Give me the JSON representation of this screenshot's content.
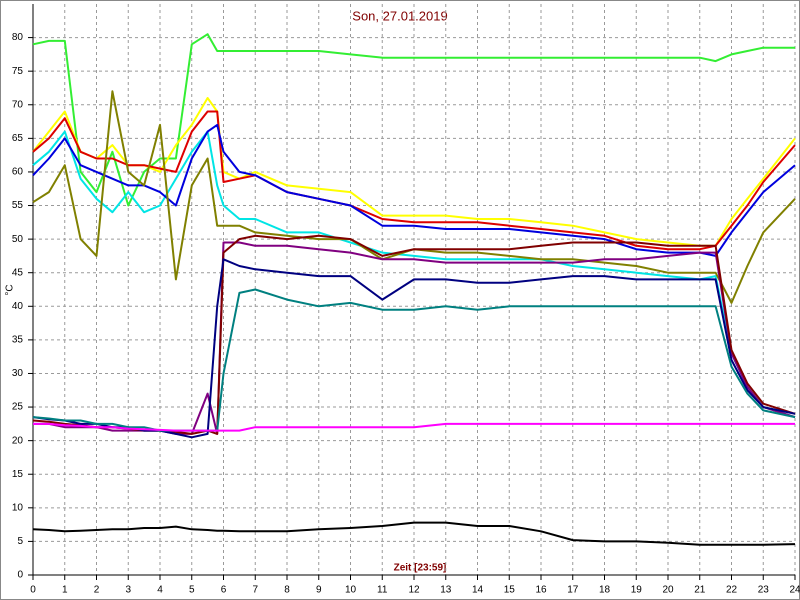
{
  "chart_data": {
    "type": "line",
    "title": "Son, 27.01.2019",
    "x_label": "Zeit [23:59]",
    "y_label": "°C",
    "x": [
      0,
      0.5,
      1,
      1.5,
      2,
      2.5,
      3,
      3.5,
      4,
      4.5,
      5,
      5.5,
      5.8,
      6,
      6.5,
      7,
      8,
      9,
      10,
      11,
      12,
      13,
      14,
      15,
      16,
      17,
      18,
      19,
      20,
      21,
      21.5,
      22,
      22.5,
      23,
      24
    ],
    "xlim": [
      0,
      24
    ],
    "xticks": [
      0,
      1,
      2,
      3,
      4,
      5,
      6,
      7,
      8,
      9,
      10,
      11,
      12,
      13,
      14,
      15,
      16,
      17,
      18,
      19,
      20,
      21,
      22,
      23,
      24
    ],
    "ylim": [
      0,
      85
    ],
    "yticks": [
      0,
      5,
      10,
      15,
      20,
      25,
      30,
      35,
      40,
      45,
      50,
      55,
      60,
      65,
      70,
      75,
      80
    ],
    "grid": true,
    "series": [
      {
        "color": "#33ee33",
        "values": [
          79,
          79.5,
          79.5,
          60,
          57,
          63,
          55,
          60,
          62,
          62,
          79,
          80.5,
          78,
          78,
          78,
          78,
          78,
          78,
          77.5,
          77,
          77,
          77,
          77,
          77,
          77,
          77,
          77,
          77,
          77,
          77,
          76.5,
          77.5,
          78,
          78.5,
          78.5
        ]
      },
      {
        "color": "#ffff00",
        "values": [
          63,
          66,
          69,
          63,
          62,
          64,
          61,
          61,
          60,
          64,
          67,
          71,
          69,
          60,
          59,
          60,
          58,
          57.5,
          57,
          53.5,
          53.5,
          53.5,
          53,
          53,
          52.5,
          52,
          51,
          50,
          49.5,
          49,
          49,
          53,
          56,
          59,
          65
        ]
      },
      {
        "color": "#dd0000",
        "values": [
          63,
          65,
          68,
          63,
          62,
          62,
          61,
          61,
          60.5,
          60,
          66,
          69,
          69,
          58.5,
          59,
          59.5,
          57,
          56,
          55,
          53,
          52.5,
          52.5,
          52.5,
          52,
          51.5,
          51,
          50.5,
          49,
          48.5,
          48.5,
          49,
          52,
          55,
          58.5,
          64
        ]
      },
      {
        "color": "#00e5e5",
        "values": [
          61,
          63,
          66,
          59,
          56,
          54,
          57,
          54,
          55,
          59,
          63,
          66,
          58,
          55,
          53,
          53,
          51,
          51,
          49.5,
          48,
          47.5,
          47,
          47,
          47,
          47,
          46,
          45.5,
          45,
          44.5,
          44,
          44.5,
          33,
          28,
          25,
          23.5
        ]
      },
      {
        "color": "#0000dd",
        "values": [
          59.5,
          62,
          65,
          61,
          60,
          59,
          58,
          58,
          57,
          55,
          62,
          66,
          67,
          63,
          60,
          59.5,
          57,
          56,
          55,
          52,
          52,
          51.5,
          51.5,
          51.5,
          51,
          50.5,
          50,
          48.5,
          48,
          48,
          47.5,
          51,
          54,
          57,
          61
        ]
      },
      {
        "color": "#808000",
        "values": [
          55.5,
          57,
          61,
          50,
          47.5,
          72,
          60,
          58,
          67,
          44,
          58,
          62,
          52,
          52,
          52,
          51,
          50.5,
          50,
          50,
          47,
          48.5,
          48,
          48,
          47.5,
          47,
          47,
          46.5,
          46,
          45,
          45,
          45,
          40.5,
          46,
          51,
          56
        ]
      },
      {
        "color": "#800080",
        "values": [
          22.5,
          22.5,
          22,
          22,
          22,
          21.5,
          21.5,
          21.5,
          21.5,
          21,
          21,
          27,
          21,
          49.5,
          49.5,
          49,
          49,
          48.5,
          48,
          47,
          47,
          46.5,
          46.5,
          46.5,
          46.5,
          46.5,
          47,
          47,
          47.5,
          48,
          48,
          33,
          28,
          25,
          23.5
        ]
      },
      {
        "color": "#800000",
        "values": [
          23,
          22.8,
          22.5,
          22.3,
          22,
          22,
          21.8,
          21.5,
          21.5,
          21.3,
          21,
          21.5,
          21,
          48,
          50,
          50.5,
          50,
          50.5,
          50,
          47.5,
          48.5,
          48.5,
          48.5,
          48.5,
          49,
          49.5,
          49.5,
          49.5,
          49,
          49,
          49,
          33.5,
          28.5,
          25.5,
          24
        ]
      },
      {
        "color": "#000080",
        "values": [
          23.5,
          23.2,
          23,
          22.5,
          22.5,
          22,
          22,
          21.5,
          21.5,
          21,
          20.5,
          21,
          40,
          47,
          46,
          45.5,
          45,
          44.5,
          44.5,
          41,
          44,
          44,
          43.5,
          43.5,
          44,
          44.5,
          44.5,
          44,
          44,
          44,
          44,
          32,
          27.5,
          25,
          24
        ]
      },
      {
        "color": "#008080",
        "values": [
          23.5,
          23.3,
          23,
          23,
          22.5,
          22.5,
          22,
          22,
          21.5,
          21.5,
          21.5,
          21.5,
          21.5,
          30,
          42,
          42.5,
          41,
          40,
          40.5,
          39.5,
          39.5,
          40,
          39.5,
          40,
          40,
          40,
          40,
          40,
          40,
          40,
          40,
          31,
          27,
          24.5,
          23.5
        ]
      },
      {
        "color": "#ff00ff",
        "values": [
          22.5,
          22.5,
          22.3,
          22.2,
          22,
          22,
          21.8,
          21.7,
          21.6,
          21.5,
          21.5,
          21.5,
          21.5,
          21.5,
          21.5,
          22,
          22,
          22,
          22,
          22,
          22,
          22.5,
          22.5,
          22.5,
          22.5,
          22.5,
          22.5,
          22.5,
          22.5,
          22.5,
          22.5,
          22.5,
          22.5,
          22.5,
          22.5
        ]
      },
      {
        "color": "#000000",
        "values": [
          6.8,
          6.7,
          6.5,
          6.6,
          6.7,
          6.8,
          6.8,
          7,
          7,
          7.2,
          6.8,
          6.7,
          6.6,
          6.6,
          6.5,
          6.5,
          6.5,
          6.8,
          7,
          7.3,
          7.8,
          7.8,
          7.3,
          7.3,
          6.5,
          5.2,
          5,
          5,
          4.8,
          4.5,
          4.5,
          4.5,
          4.5,
          4.5,
          4.6
        ]
      }
    ]
  }
}
